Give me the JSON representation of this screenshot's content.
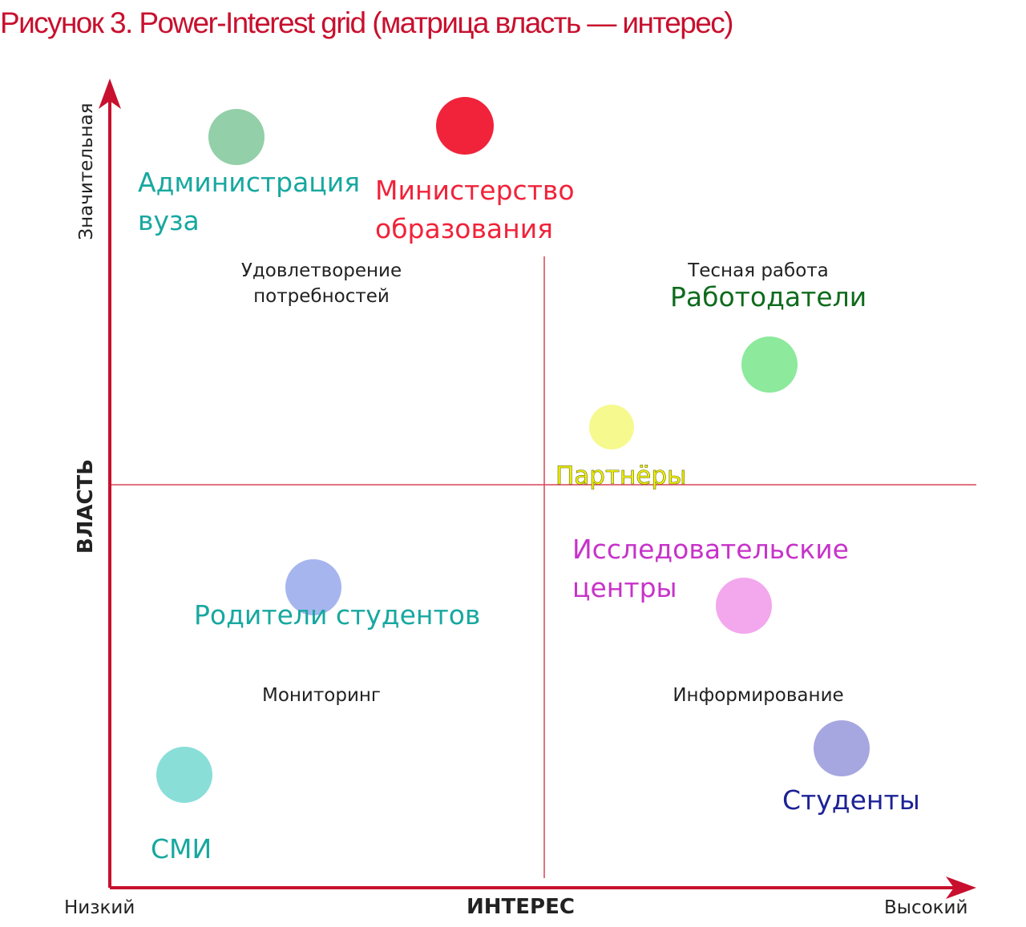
{
  "title": "Рисунок 3. Power-Interest grid (матрица власть — интерес)",
  "axes": {
    "x_label": "ИНТЕРЕС",
    "x_low": "Низкий",
    "x_high": "Высокий",
    "y_label": "ВЛАСТЬ",
    "y_high": "Значительная"
  },
  "quadrants": {
    "top_left": "Удовлетворение\nпотребностей",
    "top_right": "Тесная работа",
    "bottom_left": "Мониторинг",
    "bottom_right": "Информирование"
  },
  "stakeholders": [
    {
      "id": "admin",
      "label": "Администрация\nвуза",
      "bubble_color": "#93cfa8",
      "text_color": "#17a8a0"
    },
    {
      "id": "ministry",
      "label": "Министерство\nобразования",
      "bubble_color": "#f0233a",
      "text_color": "#f0233a"
    },
    {
      "id": "employers",
      "label": "Работодатели",
      "bubble_color": "#8de99c",
      "text_color": "#0f6b1c"
    },
    {
      "id": "partners",
      "label": "Партнёры",
      "bubble_color": "#f6f98e",
      "text_color": "#eef20a"
    },
    {
      "id": "research",
      "label": "Исследовательские\nцентры",
      "bubble_color": "#f3a7ed",
      "text_color": "#c733c9"
    },
    {
      "id": "parents",
      "label": "Родители студентов",
      "bubble_color": "#a6b5ee",
      "text_color": "#17a8a0"
    },
    {
      "id": "students",
      "label": "Студенты",
      "bubble_color": "#a6a7e0",
      "text_color": "#1c2296"
    },
    {
      "id": "media",
      "label": "СМИ",
      "bubble_color": "#89ded8",
      "text_color": "#17a8a0"
    }
  ],
  "colors": {
    "axis": "#c8102e",
    "divider": "#d94456",
    "title": "#c8102e"
  }
}
